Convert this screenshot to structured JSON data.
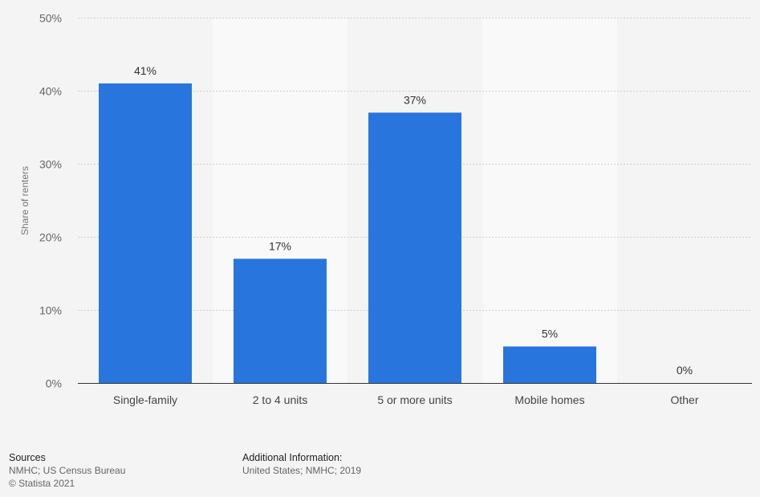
{
  "chart_data": {
    "type": "bar",
    "categories": [
      "Single-family",
      "2 to 4 units",
      "5 or more units",
      "Mobile homes",
      "Other"
    ],
    "values": [
      41,
      17,
      37,
      5,
      0
    ],
    "data_labels": [
      "41%",
      "17%",
      "37%",
      "5%",
      "0%"
    ],
    "ylabel": "Share of renters",
    "ylim": [
      0,
      50
    ],
    "yticks": [
      0,
      10,
      20,
      30,
      40,
      50
    ],
    "ytick_labels": [
      "0%",
      "10%",
      "20%",
      "30%",
      "40%",
      "50%"
    ],
    "grid": true,
    "bar_color": "#2876dd",
    "alternate_band_color": "#f9f9f9",
    "background_color": "#f4f4f4"
  },
  "footer": {
    "sources_heading": "Sources",
    "sources_lines": [
      "NMHC; US Census Bureau",
      "© Statista 2021"
    ],
    "additional_heading": "Additional Information:",
    "additional_lines": [
      "United States; NMHC; 2019"
    ]
  }
}
